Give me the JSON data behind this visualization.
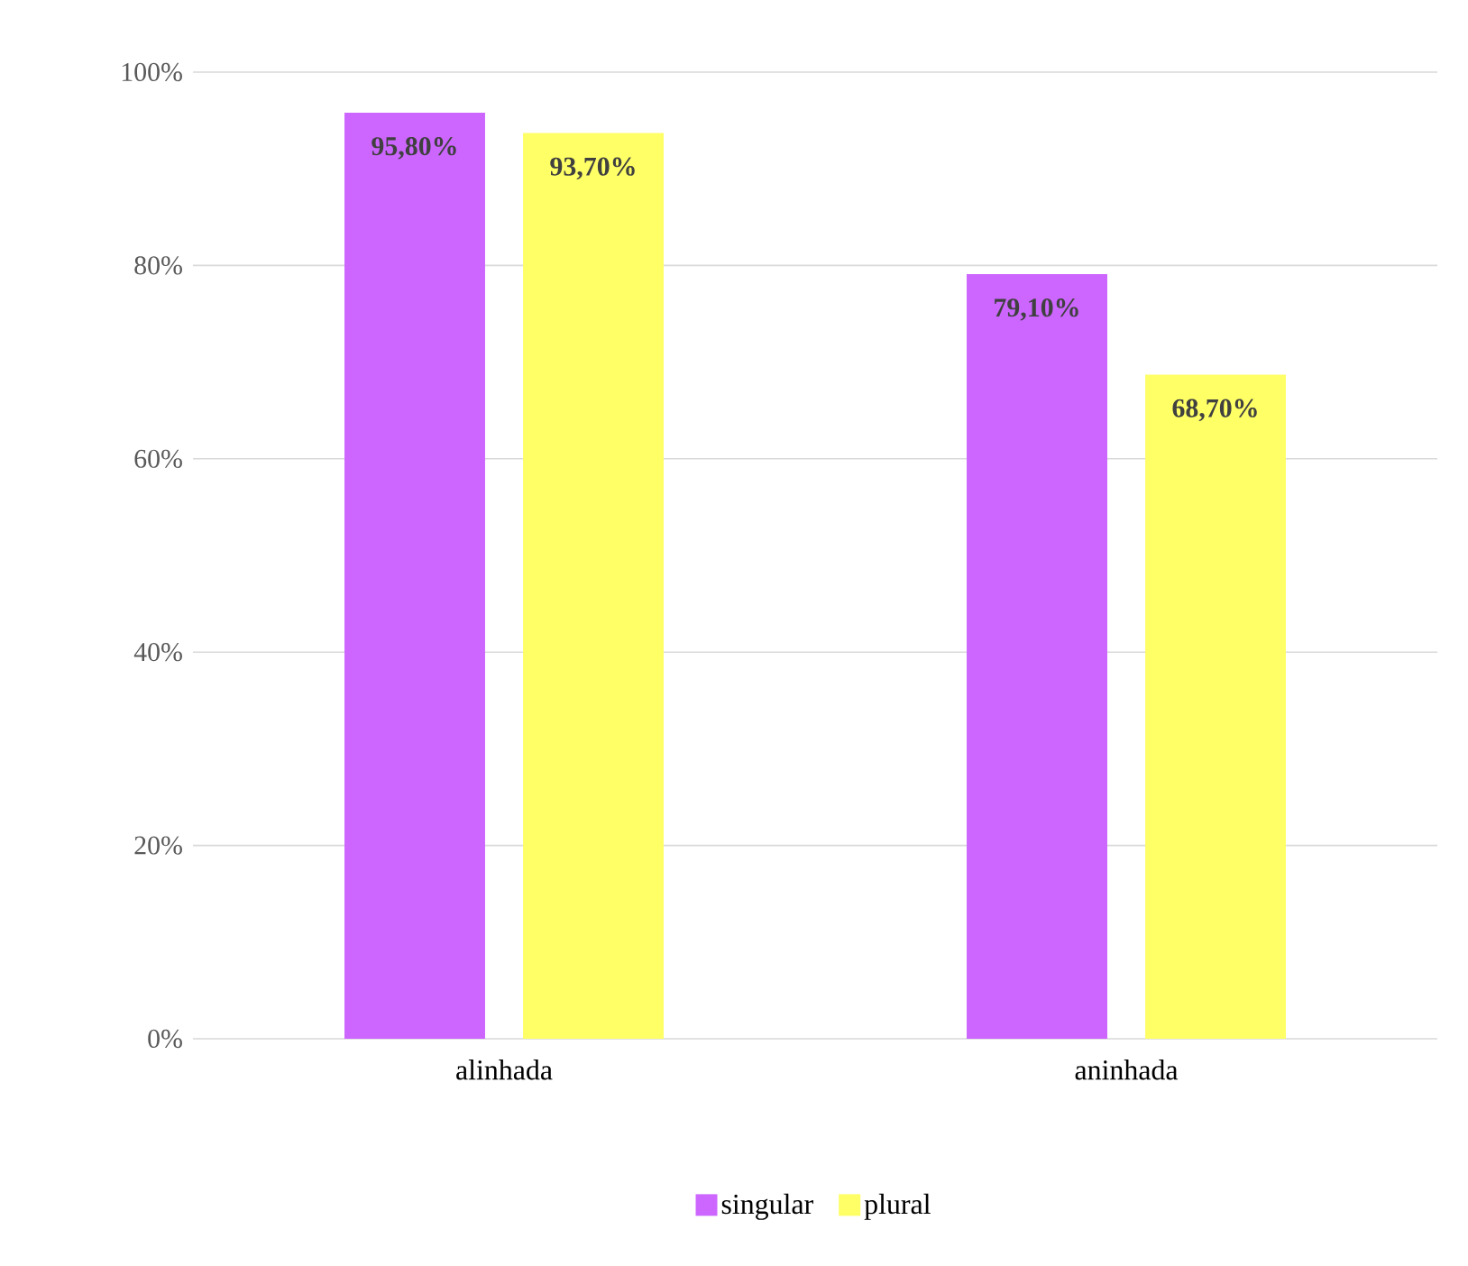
{
  "chart_data": {
    "type": "bar",
    "categories": [
      "alinhada",
      "aninhada"
    ],
    "series": [
      {
        "name": "singular",
        "color": "#cc66ff",
        "values": [
          95.8,
          79.1
        ],
        "value_labels": [
          "95,80%",
          "79,10%"
        ]
      },
      {
        "name": "plural",
        "color": "#ffff66",
        "values": [
          93.7,
          68.7
        ],
        "value_labels": [
          "93,70%",
          "68,70%"
        ]
      }
    ],
    "ylim": [
      0,
      100
    ],
    "yticks": [
      {
        "value": 0,
        "label": "0%"
      },
      {
        "value": 20,
        "label": "20%"
      },
      {
        "value": 40,
        "label": "40%"
      },
      {
        "value": 60,
        "label": "60%"
      },
      {
        "value": 80,
        "label": "80%"
      },
      {
        "value": 100,
        "label": "100%"
      }
    ],
    "grid": "y",
    "legend": "bottom"
  }
}
